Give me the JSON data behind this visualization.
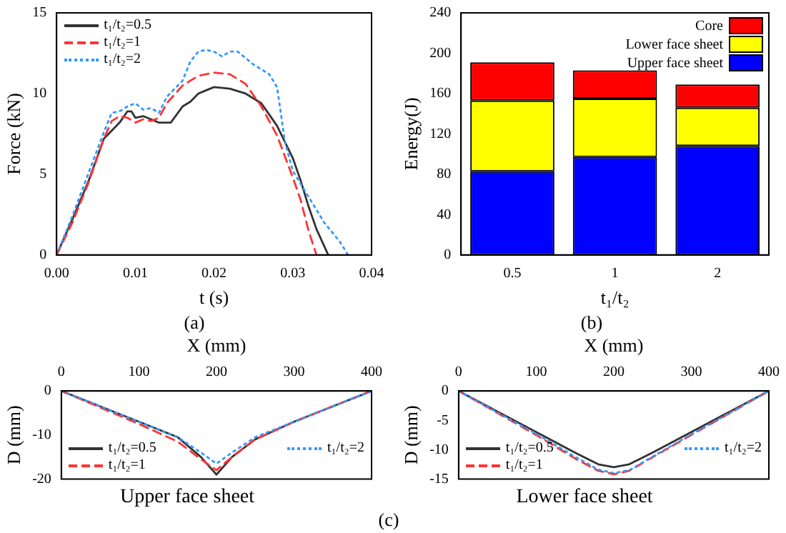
{
  "chart_data": [
    {
      "type": "line",
      "xlabel": "t (s)",
      "ylabel": "Force (kN)",
      "xlim": [
        0,
        0.04
      ],
      "xticks": [
        {
          "value": 0,
          "label": "0.00"
        },
        {
          "value": 0.01,
          "label": "0.01"
        },
        {
          "value": 0.02,
          "label": "0.02"
        },
        {
          "value": 0.03,
          "label": "0.03"
        },
        {
          "value": 0.04,
          "label": "0.04"
        }
      ],
      "ylim": [
        0,
        15
      ],
      "yticks": [
        0,
        5,
        10,
        15
      ],
      "grid": false,
      "legend": "top left",
      "marker": "none",
      "annotations": [
        "(a)"
      ],
      "series": [
        {
          "name": "t₁/t₂=0.5",
          "color": "#333333",
          "line_style": "solid",
          "x": [
            0,
            0.002,
            0.004,
            0.006,
            0.008,
            0.009,
            0.0095,
            0.01,
            0.011,
            0.012,
            0.013,
            0.0145,
            0.016,
            0.017,
            0.018,
            0.019,
            0.02,
            0.022,
            0.024,
            0.026,
            0.028,
            0.03,
            0.031,
            0.032,
            0.033,
            0.0345
          ],
          "values": [
            0,
            2.2,
            4.5,
            7.2,
            8.2,
            8.9,
            8.9,
            8.5,
            8.6,
            8.4,
            8.2,
            8.2,
            9.2,
            9.5,
            10,
            10.2,
            10.4,
            10.3,
            10,
            9.4,
            8,
            6,
            4.6,
            3,
            1.6,
            0
          ]
        },
        {
          "name": "t₁/t₂=1",
          "color": "#ff3333",
          "line_style": "dashed",
          "x": [
            0,
            0.002,
            0.004,
            0.006,
            0.007,
            0.008,
            0.009,
            0.01,
            0.011,
            0.012,
            0.013,
            0.014,
            0.016,
            0.018,
            0.02,
            0.022,
            0.024,
            0.026,
            0.028,
            0.03,
            0.031,
            0.032,
            0.033
          ],
          "values": [
            0,
            2,
            4.4,
            7.2,
            8.3,
            8.6,
            8.5,
            8.2,
            8.4,
            8.3,
            8.5,
            9.4,
            10.5,
            11.1,
            11.3,
            11.2,
            10.6,
            9.2,
            7.4,
            4.8,
            3.4,
            1.5,
            0
          ]
        },
        {
          "name": "t₁/t₂=2",
          "color": "#3399ff",
          "line_style": "dotted",
          "x": [
            0,
            0.002,
            0.004,
            0.006,
            0.007,
            0.008,
            0.009,
            0.01,
            0.011,
            0.012,
            0.013,
            0.014,
            0.016,
            0.017,
            0.018,
            0.019,
            0.02,
            0.021,
            0.022,
            0.023,
            0.025,
            0.027,
            0.028,
            0.029,
            0.03,
            0.032,
            0.034,
            0.036,
            0.037
          ],
          "values": [
            0,
            2.4,
            5,
            7.6,
            8.8,
            8.9,
            9.2,
            9.4,
            9,
            9.1,
            8.8,
            9.8,
            10.8,
            12,
            12.6,
            12.7,
            12.6,
            12.3,
            12.6,
            12.6,
            11.8,
            11.2,
            10.4,
            7,
            5.2,
            3.6,
            2,
            0.8,
            0
          ]
        }
      ]
    },
    {
      "type": "bar",
      "stacked": true,
      "xlabel": "t₁/t₂",
      "ylabel": "Energy(J)",
      "categories": [
        "0.5",
        "1",
        "2"
      ],
      "ylim": [
        0,
        240
      ],
      "yticks": [
        0,
        40,
        80,
        120,
        160,
        200,
        240
      ],
      "grid": false,
      "legend": "top right",
      "annotations": [
        "(b)"
      ],
      "series": [
        {
          "name": "Upper face sheet",
          "color": "#0000ff",
          "values": [
            83,
            97,
            108
          ]
        },
        {
          "name": "Lower face sheet",
          "color": "#ffff00",
          "values": [
            70,
            58,
            38
          ]
        },
        {
          "name": "Core",
          "color": "#ff0000",
          "values": [
            38,
            28,
            23
          ]
        }
      ]
    },
    {
      "type": "line",
      "title": "Upper face sheet",
      "xlabel": "X (mm)",
      "ylabel": "D (mm)",
      "xlim": [
        0,
        400
      ],
      "xticks": [
        0,
        100,
        200,
        300,
        400
      ],
      "ylim": [
        -20,
        0
      ],
      "yticks": [
        -20,
        -10,
        0
      ],
      "grid": false,
      "legend": "bottom",
      "marker": "none",
      "annotations": [
        "(c)"
      ],
      "series": [
        {
          "name": "t₁/t₂=0.5",
          "color": "#333333",
          "line_style": "solid",
          "x": [
            0,
            50,
            100,
            150,
            180,
            200,
            220,
            250,
            300,
            350,
            400
          ],
          "values": [
            0,
            -3.5,
            -7,
            -10.5,
            -15,
            -19,
            -15,
            -11,
            -7,
            -3.5,
            0
          ]
        },
        {
          "name": "t₁/t₂=1",
          "color": "#ff3333",
          "line_style": "dashed",
          "x": [
            0,
            100,
            150,
            180,
            200,
            220,
            250,
            300,
            400
          ],
          "values": [
            0,
            -7.5,
            -11.5,
            -15.5,
            -18,
            -15,
            -11,
            -7,
            0
          ]
        },
        {
          "name": "t₁/t₂=2",
          "color": "#3399ff",
          "line_style": "dotted",
          "x": [
            0,
            100,
            150,
            180,
            200,
            220,
            250,
            300,
            400
          ],
          "values": [
            0,
            -7,
            -10.5,
            -14,
            -16.5,
            -14,
            -10.5,
            -7,
            0
          ]
        }
      ]
    },
    {
      "type": "line",
      "title": "Lower face sheet",
      "xlabel": "X (mm)",
      "ylabel": "D (mm)",
      "xlim": [
        0,
        400
      ],
      "xticks": [
        0,
        100,
        200,
        300,
        400
      ],
      "ylim": [
        -15,
        0
      ],
      "yticks": [
        -15,
        -10,
        -5,
        0
      ],
      "grid": false,
      "legend": "bottom",
      "marker": "none",
      "series": [
        {
          "name": "t₁/t₂=0.5",
          "color": "#333333",
          "line_style": "solid",
          "x": [
            0,
            50,
            100,
            150,
            180,
            200,
            220,
            250,
            300,
            350,
            400
          ],
          "values": [
            0,
            -3.5,
            -7,
            -10.5,
            -12.5,
            -13,
            -12.5,
            -10.5,
            -7,
            -3.5,
            0
          ]
        },
        {
          "name": "t₁/t₂=1",
          "color": "#ff3333",
          "line_style": "dashed",
          "x": [
            0,
            100,
            150,
            180,
            200,
            220,
            250,
            300,
            400
          ],
          "values": [
            0,
            -7.5,
            -11.5,
            -13.6,
            -14.2,
            -13.6,
            -11.3,
            -7.5,
            0
          ]
        },
        {
          "name": "t₁/t₂=2",
          "color": "#3399ff",
          "line_style": "dotted",
          "x": [
            0,
            100,
            150,
            180,
            200,
            220,
            250,
            300,
            400
          ],
          "values": [
            0,
            -7.3,
            -11.2,
            -13.4,
            -14,
            -13.5,
            -11.2,
            -7.4,
            0
          ]
        }
      ]
    }
  ]
}
